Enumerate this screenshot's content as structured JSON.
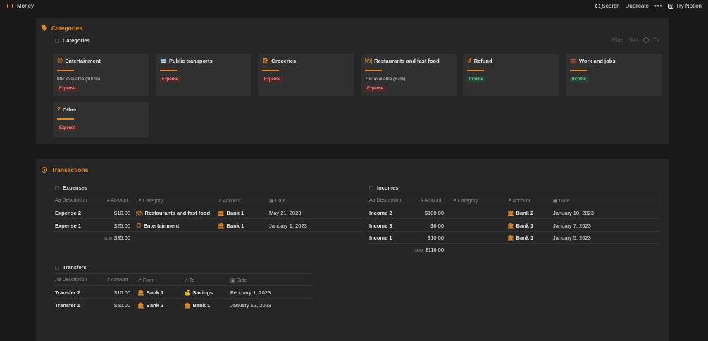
{
  "topbar": {
    "title": "Money",
    "search": "Search",
    "duplicate": "Duplicate",
    "more": "•••",
    "try": "Try Notion"
  },
  "categories": {
    "title": "Categories",
    "view": "Categories",
    "toolbar": {
      "filter": "Filter",
      "sort": "Sort",
      "expand": "⤡"
    },
    "cards": [
      {
        "name": "Entertainment",
        "icon": "😈",
        "avail": "80€ available (100%)",
        "type": "Expense"
      },
      {
        "name": "Public transports",
        "icon": "🚍",
        "avail": "",
        "type": "Expense"
      },
      {
        "name": "Groceries",
        "icon": "🛍",
        "avail": "",
        "type": "Expense"
      },
      {
        "name": "Restaurants and fast food",
        "icon": "🍽",
        "avail": "70€ available (87%)",
        "type": "Expense"
      },
      {
        "name": "Refund",
        "icon": "↺",
        "avail": "",
        "type": "Income"
      },
      {
        "name": "Work and jobs",
        "icon": "💼",
        "avail": "",
        "type": "Income"
      },
      {
        "name": "Other",
        "icon": "?",
        "avail": "",
        "type": "Expense"
      }
    ]
  },
  "transactions": {
    "title": "Transactions",
    "expenses": {
      "title": "Expenses",
      "headers": [
        "Description",
        "Amount",
        "Category",
        "Account",
        "Date"
      ],
      "rows": [
        {
          "desc": "Expense 2",
          "amount": "$10.00",
          "category": "Restaurants and fast food",
          "account": "Bank 1",
          "date": "May 21, 2023"
        },
        {
          "desc": "Expense 1",
          "amount": "$25.00",
          "category": "Entertainment",
          "account": "Bank 1",
          "date": "January 1, 2023"
        }
      ],
      "sum_label": "SUM",
      "sum": "$35.00"
    },
    "incomes": {
      "title": "Incomes",
      "headers": [
        "Description",
        "Amount",
        "Category",
        "Account",
        "Date"
      ],
      "rows": [
        {
          "desc": "Income 2",
          "amount": "$100.00",
          "account": "Bank 2",
          "date": "January 10, 2023"
        },
        {
          "desc": "Income 3",
          "amount": "$6.00",
          "account": "Bank 1",
          "date": "January 7, 2023"
        },
        {
          "desc": "Income 1",
          "amount": "$10.00",
          "account": "Bank 1",
          "date": "January 5, 2023"
        }
      ],
      "sum_label": "SUM",
      "sum": "$116.00"
    },
    "transfers": {
      "title": "Transfers",
      "headers": [
        "Description",
        "Amount",
        "From",
        "To",
        "Date"
      ],
      "rows": [
        {
          "desc": "Transfer 2",
          "amount": "$10.00",
          "from": "Bank 1",
          "to": "Savings",
          "date": "February 1, 2023"
        },
        {
          "desc": "Transfer 1",
          "amount": "$50.00",
          "from": "Bank 2",
          "to": "Bank 1",
          "date": "January 12, 2023"
        }
      ]
    }
  },
  "colors": {
    "accent": "#e08a2b",
    "background": "#191919",
    "panel": "#262626",
    "card": "#303030",
    "expense_bg": "#5a2626",
    "income_bg": "#234a34"
  }
}
